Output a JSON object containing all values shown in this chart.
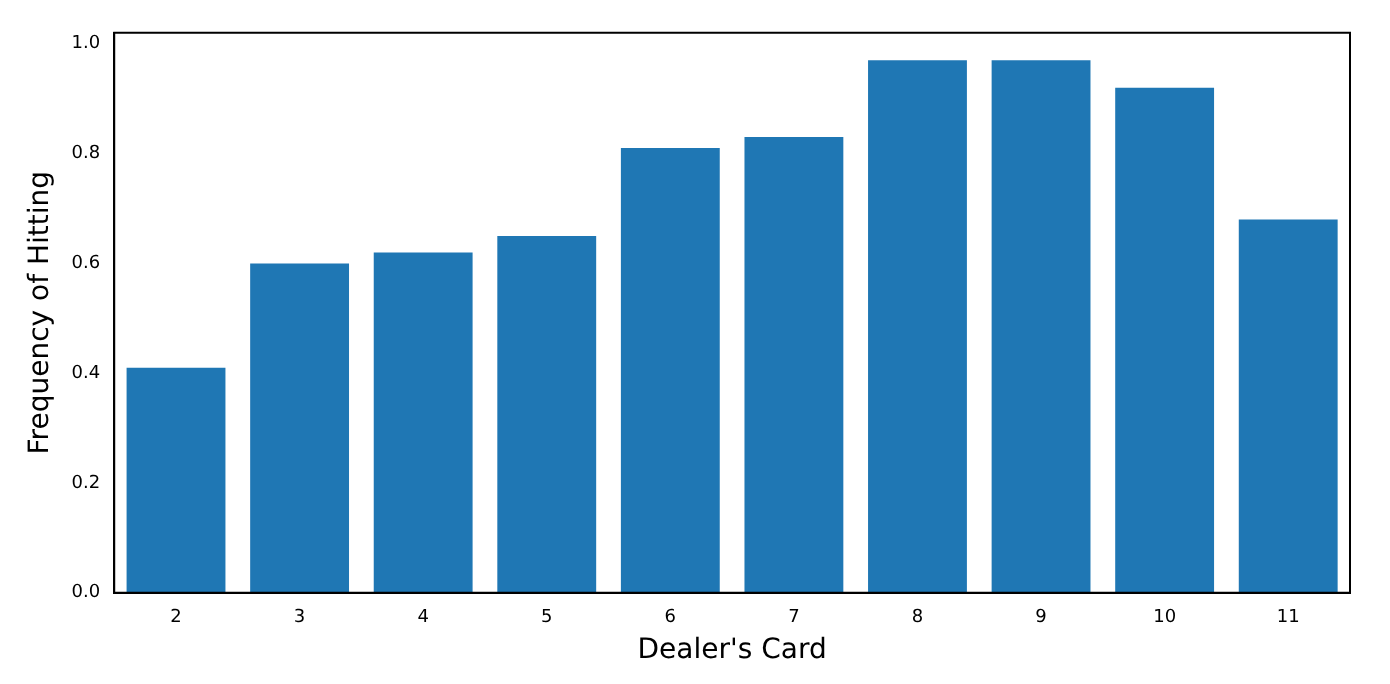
{
  "chart_data": {
    "type": "bar",
    "xlabel": "Dealer's Card",
    "ylabel": "Frequency of Hitting",
    "categories": [
      "2",
      "3",
      "4",
      "5",
      "6",
      "7",
      "8",
      "9",
      "10",
      "11"
    ],
    "values": [
      0.41,
      0.6,
      0.62,
      0.65,
      0.81,
      0.83,
      0.97,
      0.97,
      0.92,
      0.68
    ],
    "color": "#1f77b4",
    "ylim": [
      0,
      1.02
    ],
    "yticks": [
      {
        "value": 0,
        "label": "0.0"
      },
      {
        "value": 0.2,
        "label": "0.2"
      },
      {
        "value": 0.4,
        "label": "0.4"
      },
      {
        "value": 0.6,
        "label": "0.6"
      },
      {
        "value": 0.8,
        "label": "0.8"
      },
      {
        "value": 1,
        "label": "1.0"
      }
    ],
    "grid": false,
    "legend": false
  }
}
